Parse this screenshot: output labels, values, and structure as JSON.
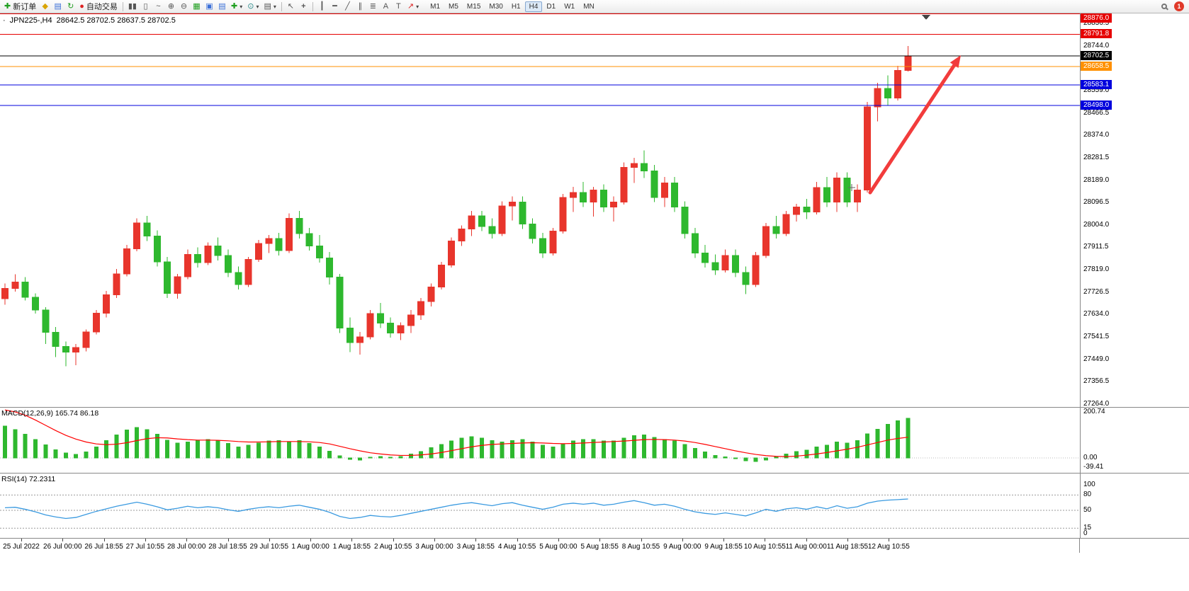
{
  "toolbar": {
    "new_order_label": "新订单",
    "autotrading_label": "自动交易",
    "timeframes": [
      "M1",
      "M5",
      "M15",
      "M30",
      "H1",
      "H4",
      "D1",
      "W1",
      "MN"
    ],
    "active_timeframe": "H4",
    "notification_count": "1",
    "icons": {
      "new_order": "✚",
      "indicators": "◆",
      "market_watch": "▤",
      "refresh": "↻",
      "autotrading_dot": "●",
      "bar_chart": "▮▮",
      "candlestick_chart": "▯",
      "line_chart": "~",
      "zoom_in": "⊕",
      "zoom_out": "⊖",
      "tile_windows": "▦",
      "cascade_windows": "▣",
      "window_list": "▤",
      "add_indicator": "✚",
      "periods": "⊙",
      "templates": "▤",
      "dropdown": "▾",
      "cursor": "↖",
      "crosshair": "+",
      "vertical_line": "┃",
      "horizontal_line": "━",
      "trendline": "╱",
      "channel": "∥",
      "fibonacci": "≣",
      "text": "A",
      "text_label": "T",
      "arrow_tool": "↗"
    }
  },
  "chart": {
    "title_bullet": "·",
    "title_symbol": "JPN225-,H4",
    "title_ohlc": "28642.5 28702.5 28637.5 28702.5",
    "price_ticks": [
      28836.5,
      28744.0,
      28651.5,
      28559.0,
      28466.5,
      28374.0,
      28281.5,
      28189.0,
      28096.5,
      28004.0,
      27911.5,
      27819.0,
      27726.5,
      27634.0,
      27541.5,
      27449.0,
      27356.5,
      27264.0
    ],
    "levels": [
      {
        "label": "28876.0",
        "price": 28876.0,
        "color": "#e60000"
      },
      {
        "label": "28791.8",
        "price": 28791.8,
        "color": "#e60000"
      },
      {
        "label": "28702.5",
        "price": 28702.5,
        "color": "#000000"
      },
      {
        "label": "28658.5",
        "price": 28658.5,
        "color": "#ff9000"
      },
      {
        "label": "28583.1",
        "price": 28583.1,
        "color": "#0000dd"
      },
      {
        "label": "28498.0",
        "price": 28498.0,
        "color": "#0000dd"
      }
    ],
    "arrow": {
      "from": [
        1228,
        253
      ],
      "to": [
        1356,
        59
      ],
      "color": "#f23c3c"
    }
  },
  "chart_data": {
    "type": "candlestick",
    "symbol": "JPN225-",
    "timeframe": "H4",
    "view": {
      "price_max": 28878,
      "price_min": 27252
    },
    "up_color": "#e8352c",
    "down_color": "#2eb82e",
    "candles": [
      [
        27700,
        27762,
        27675,
        27742
      ],
      [
        27742,
        27800,
        27728,
        27768
      ],
      [
        27768,
        27788,
        27692,
        27705
      ],
      [
        27705,
        27722,
        27638,
        27652
      ],
      [
        27652,
        27665,
        27512,
        27560
      ],
      [
        27560,
        27582,
        27458,
        27502
      ],
      [
        27502,
        27522,
        27420,
        27478
      ],
      [
        27478,
        27512,
        27424,
        27498
      ],
      [
        27498,
        27572,
        27482,
        27562
      ],
      [
        27562,
        27652,
        27552,
        27640
      ],
      [
        27640,
        27732,
        27622,
        27716
      ],
      [
        27716,
        27822,
        27702,
        27802
      ],
      [
        27802,
        27922,
        27792,
        27906
      ],
      [
        27906,
        28032,
        27896,
        28012
      ],
      [
        28012,
        28042,
        27938,
        27958
      ],
      [
        27958,
        27982,
        27832,
        27852
      ],
      [
        27852,
        27872,
        27702,
        27722
      ],
      [
        27722,
        27802,
        27700,
        27790
      ],
      [
        27790,
        27902,
        27780,
        27882
      ],
      [
        27882,
        27912,
        27828,
        27848
      ],
      [
        27848,
        27932,
        27838,
        27918
      ],
      [
        27918,
        27952,
        27858,
        27878
      ],
      [
        27878,
        27902,
        27788,
        27808
      ],
      [
        27808,
        27832,
        27738,
        27758
      ],
      [
        27758,
        27872,
        27748,
        27862
      ],
      [
        27862,
        27942,
        27852,
        27928
      ],
      [
        27928,
        27962,
        27888,
        27948
      ],
      [
        27948,
        27972,
        27878,
        27898
      ],
      [
        27898,
        28052,
        27888,
        28032
      ],
      [
        28032,
        28062,
        27948,
        27968
      ],
      [
        27968,
        27992,
        27898,
        27918
      ],
      [
        27918,
        27962,
        27848,
        27868
      ],
      [
        27868,
        27892,
        27758,
        27788
      ],
      [
        27788,
        27802,
        27558,
        27578
      ],
      [
        27578,
        27622,
        27478,
        27518
      ],
      [
        27518,
        27562,
        27468,
        27542
      ],
      [
        27542,
        27652,
        27532,
        27638
      ],
      [
        27638,
        27682,
        27578,
        27598
      ],
      [
        27598,
        27622,
        27538,
        27558
      ],
      [
        27558,
        27602,
        27528,
        27588
      ],
      [
        27588,
        27652,
        27558,
        27632
      ],
      [
        27632,
        27702,
        27612,
        27688
      ],
      [
        27688,
        27762,
        27668,
        27748
      ],
      [
        27748,
        27852,
        27738,
        27838
      ],
      [
        27838,
        27952,
        27828,
        27938
      ],
      [
        27938,
        28002,
        27918,
        27988
      ],
      [
        27988,
        28062,
        27958,
        28042
      ],
      [
        28042,
        28062,
        27978,
        27998
      ],
      [
        27998,
        28032,
        27948,
        27968
      ],
      [
        27968,
        28102,
        27958,
        28082
      ],
      [
        28082,
        28122,
        28022,
        28098
      ],
      [
        28098,
        28122,
        27988,
        28008
      ],
      [
        28008,
        28032,
        27928,
        27948
      ],
      [
        27948,
        27972,
        27868,
        27888
      ],
      [
        27888,
        27992,
        27878,
        27978
      ],
      [
        27978,
        28132,
        27968,
        28118
      ],
      [
        28118,
        28162,
        28058,
        28138
      ],
      [
        28138,
        28182,
        28078,
        28098
      ],
      [
        28098,
        28162,
        28038,
        28148
      ],
      [
        28148,
        28172,
        28058,
        28078
      ],
      [
        28078,
        28122,
        28018,
        28098
      ],
      [
        28098,
        28262,
        28088,
        28242
      ],
      [
        28242,
        28282,
        28178,
        28258
      ],
      [
        28258,
        28312,
        28198,
        28228
      ],
      [
        28228,
        28252,
        28098,
        28118
      ],
      [
        28118,
        28202,
        28078,
        28178
      ],
      [
        28178,
        28202,
        28058,
        28078
      ],
      [
        28078,
        28102,
        27948,
        27968
      ],
      [
        27968,
        27992,
        27868,
        27888
      ],
      [
        27888,
        27922,
        27828,
        27848
      ],
      [
        27848,
        27882,
        27798,
        27818
      ],
      [
        27818,
        27902,
        27808,
        27878
      ],
      [
        27878,
        27902,
        27788,
        27808
      ],
      [
        27808,
        27832,
        27718,
        27758
      ],
      [
        27758,
        27892,
        27748,
        27878
      ],
      [
        27878,
        28012,
        27868,
        27998
      ],
      [
        27998,
        28042,
        27948,
        27968
      ],
      [
        27968,
        28062,
        27958,
        28048
      ],
      [
        28048,
        28092,
        28018,
        28078
      ],
      [
        28078,
        28112,
        28028,
        28058
      ],
      [
        28058,
        28182,
        28048,
        28158
      ],
      [
        28158,
        28202,
        28078,
        28098
      ],
      [
        28098,
        28222,
        28058,
        28198
      ],
      [
        28198,
        28222,
        28078,
        28098
      ],
      [
        28098,
        28172,
        28058,
        28148
      ],
      [
        28148,
        28512,
        28138,
        28492
      ],
      [
        28492,
        28592,
        28432,
        28568
      ],
      [
        28568,
        28622,
        28498,
        28528
      ],
      [
        28528,
        28662,
        28518,
        28642
      ],
      [
        28642.5,
        28744,
        28637.5,
        28702.5
      ]
    ]
  },
  "macd": {
    "label": "MACD(12,26,9) 165.74 86.18",
    "axis_labels": [
      "200.74",
      "0.00",
      "-39.41"
    ],
    "axis_values": [
      200.74,
      0,
      -39.41
    ],
    "scale": {
      "max": 200.74,
      "min": -45
    },
    "bar_color": "#2eb82e",
    "line_color": "#ff0000",
    "histogram": [
      132,
      118,
      98,
      76,
      54,
      34,
      20,
      14,
      24,
      46,
      72,
      96,
      116,
      126,
      118,
      98,
      74,
      62,
      66,
      72,
      76,
      70,
      60,
      46,
      52,
      62,
      70,
      72,
      66,
      72,
      60,
      46,
      28,
      8,
      -6,
      -10,
      2,
      6,
      2,
      6,
      16,
      26,
      42,
      56,
      70,
      82,
      88,
      82,
      72,
      66,
      72,
      76,
      66,
      52,
      46,
      56,
      70,
      76,
      76,
      70,
      70,
      82,
      92,
      96,
      86,
      76,
      70,
      56,
      40,
      24,
      10,
      4,
      -2,
      -12,
      -16,
      -10,
      6,
      16,
      26,
      32,
      46,
      52,
      66,
      62,
      72,
      100,
      120,
      140,
      155,
      165.74
    ],
    "signal": [
      200,
      192,
      178,
      158,
      136,
      114,
      94,
      78,
      66,
      58,
      55,
      57,
      63,
      72,
      80,
      84,
      83,
      79,
      76,
      74,
      74,
      73,
      71,
      68,
      66,
      66,
      67,
      68,
      68,
      68,
      67,
      64,
      58,
      48,
      38,
      29,
      21,
      16,
      12,
      10,
      10,
      12,
      16,
      22,
      30,
      38,
      46,
      52,
      56,
      58,
      60,
      62,
      63,
      62,
      60,
      59,
      60,
      62,
      64,
      66,
      68,
      70,
      73,
      76,
      77,
      76,
      74,
      70,
      64,
      56,
      47,
      38,
      29,
      21,
      14,
      9,
      6,
      5,
      7,
      11,
      16,
      22,
      29,
      36,
      44,
      54,
      64,
      74,
      81,
      86.18
    ]
  },
  "rsi": {
    "label": "RSI(14) 72.2311",
    "axis_labels": [
      "100",
      "80",
      "50",
      "15",
      "0"
    ],
    "axis_values": [
      100,
      80,
      50,
      15,
      0
    ],
    "level_lines": [
      80,
      50,
      15
    ],
    "line_color": "#3a9ae0",
    "values": [
      55,
      56,
      52,
      47,
      41,
      37,
      34,
      36,
      42,
      48,
      53,
      58,
      62,
      66,
      62,
      57,
      51,
      54,
      58,
      55,
      57,
      55,
      51,
      48,
      52,
      55,
      57,
      55,
      58,
      60,
      56,
      52,
      46,
      38,
      34,
      36,
      40,
      38,
      37,
      40,
      44,
      48,
      52,
      56,
      60,
      63,
      65,
      62,
      59,
      63,
      65,
      60,
      56,
      52,
      56,
      62,
      64,
      62,
      64,
      60,
      62,
      66,
      69,
      65,
      60,
      62,
      58,
      52,
      47,
      44,
      42,
      45,
      42,
      39,
      45,
      52,
      48,
      53,
      55,
      52,
      57,
      53,
      59,
      54,
      57,
      64,
      68,
      70,
      71,
      72.23
    ]
  },
  "time_axis": {
    "labels": [
      "25 Jul 2022",
      "26 Jul 00:00",
      "26 Jul 18:55",
      "27 Jul 10:55",
      "28 Jul 00:00",
      "28 Jul 18:55",
      "29 Jul 10:55",
      "1 Aug 00:00",
      "1 Aug 18:55",
      "2 Aug 10:55",
      "3 Aug 00:00",
      "3 Aug 18:55",
      "4 Aug 10:55",
      "5 Aug 00:00",
      "5 Aug 18:55",
      "8 Aug 10:55",
      "9 Aug 00:00",
      "9 Aug 18:55",
      "10 Aug 10:55",
      "11 Aug 00:00",
      "11 Aug 18:55",
      "12 Aug 10:55"
    ]
  }
}
